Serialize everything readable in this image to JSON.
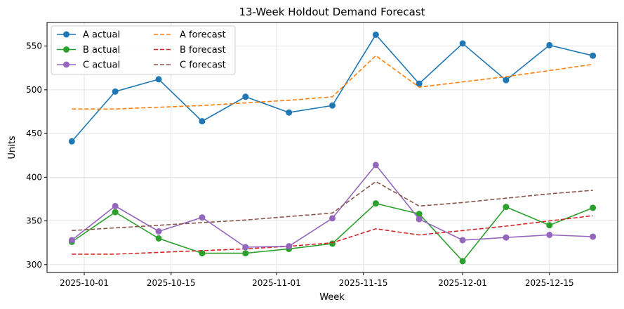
{
  "chart_data": {
    "type": "line",
    "title": "13-Week Holdout Demand Forecast",
    "xlabel": "Week",
    "ylabel": "Units",
    "x": [
      "2025-09-29",
      "2025-10-06",
      "2025-10-13",
      "2025-10-20",
      "2025-10-27",
      "2025-11-03",
      "2025-11-10",
      "2025-11-17",
      "2025-11-24",
      "2025-12-01",
      "2025-12-08",
      "2025-12-15",
      "2025-12-22"
    ],
    "xlim": [
      "2025-09-25",
      "2025-12-26"
    ],
    "ylim": [
      291,
      577
    ],
    "x_ticks": [
      "2025-10-01",
      "2025-10-15",
      "2025-11-01",
      "2025-11-15",
      "2025-12-01",
      "2025-12-15"
    ],
    "y_ticks": [
      300,
      350,
      400,
      450,
      500,
      550
    ],
    "grid": true,
    "legend_position": "top-left",
    "series": [
      {
        "name": "A actual",
        "style": "solid-marker",
        "color": "#1f77b4",
        "values": [
          441,
          498,
          512,
          464,
          492,
          474,
          482,
          563,
          507,
          553,
          511,
          551,
          539
        ]
      },
      {
        "name": "A forecast",
        "style": "dashed",
        "color": "#ff7f0e",
        "values": [
          478,
          478,
          480,
          482,
          485,
          488,
          492,
          539,
          503,
          509,
          515,
          522,
          529
        ]
      },
      {
        "name": "B actual",
        "style": "solid-marker",
        "color": "#2ca02c",
        "values": [
          326,
          360,
          330,
          313,
          313,
          318,
          324,
          370,
          358,
          304,
          366,
          345,
          365
        ]
      },
      {
        "name": "B forecast",
        "style": "dashed",
        "color": "#d62728",
        "values": [
          312,
          312,
          314,
          316,
          318,
          321,
          325,
          341,
          334,
          339,
          344,
          350,
          356
        ]
      },
      {
        "name": "C actual",
        "style": "solid-marker",
        "color": "#9467bd",
        "values": [
          328,
          367,
          338,
          354,
          320,
          321,
          353,
          414,
          352,
          328,
          331,
          334,
          332
        ]
      },
      {
        "name": "C forecast",
        "style": "dashed",
        "color": "#8c564b",
        "values": [
          339,
          342,
          345,
          348,
          351,
          355,
          359,
          395,
          367,
          371,
          376,
          381,
          385
        ]
      }
    ]
  }
}
